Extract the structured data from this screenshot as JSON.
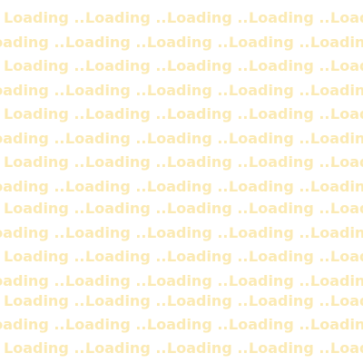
{
  "loading": {
    "label": "Loading ...",
    "text_color": "#fbeab4",
    "background": "#ffffff"
  }
}
